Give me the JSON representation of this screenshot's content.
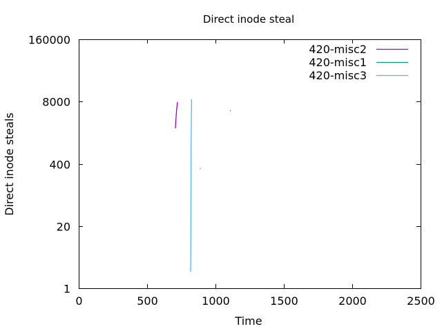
{
  "chart_data": {
    "type": "line",
    "title": "Direct inode steal",
    "xlabel": "Time",
    "ylabel": "Direct inode steals",
    "xlim": [
      0,
      2500
    ],
    "ylim": [
      1,
      160000
    ],
    "yscale": "log",
    "grid": false,
    "legend": "top-right",
    "x_ticks": [
      0,
      500,
      1000,
      1500,
      2000,
      2500
    ],
    "y_ticks": [
      1,
      20,
      400,
      8000,
      160000
    ],
    "x_tick_labels": [
      "0",
      "500",
      "1000",
      "1500",
      "2000",
      "2500"
    ],
    "y_tick_labels": [
      "1",
      "20",
      "400",
      "8000",
      "160000"
    ],
    "series": [
      {
        "name": "420-misc2",
        "color": "#9400d3",
        "points": [
          [
            707,
            2200
          ],
          [
            710,
            3200
          ],
          [
            713,
            4200
          ],
          [
            716,
            5600
          ],
          [
            719,
            6600
          ],
          [
            722,
            7800
          ],
          [
            1108,
            5200
          ]
        ]
      },
      {
        "name": "420-misc1",
        "color": "#009e73",
        "points": [
          [
            888,
            320
          ]
        ]
      },
      {
        "name": "420-misc3",
        "color": "#56b4e9",
        "points": [
          [
            818,
            2.2
          ],
          [
            819,
            5
          ],
          [
            820,
            24
          ],
          [
            822,
            1200
          ],
          [
            823,
            2500
          ],
          [
            824,
            5000
          ],
          [
            825,
            9000
          ]
        ]
      }
    ]
  }
}
